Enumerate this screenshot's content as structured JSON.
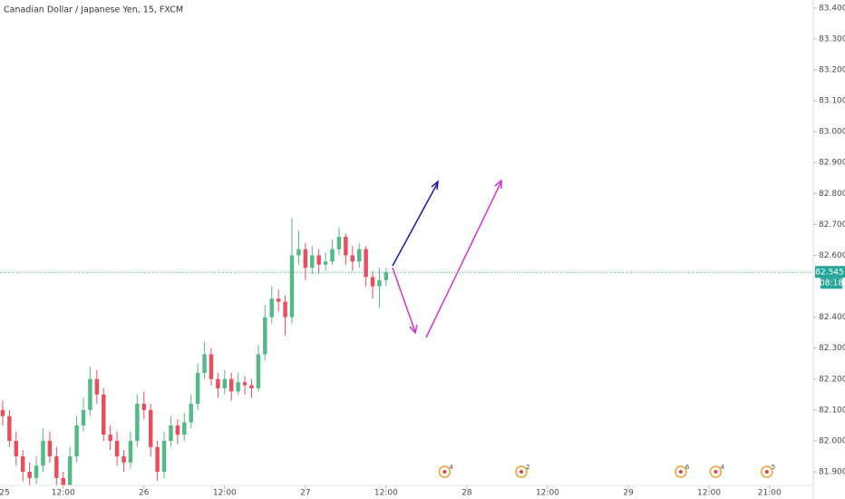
{
  "chart_data": {
    "type": "candlestick",
    "title": "Canadian Dollar / Japanese Yen, 15, FXCM",
    "x": [
      3,
      4,
      5,
      6,
      7,
      8,
      9,
      10,
      11,
      12,
      13,
      14,
      15,
      16,
      17,
      18,
      19,
      20,
      21,
      22,
      23,
      24,
      25,
      26,
      27,
      28,
      29,
      30,
      31,
      32,
      33,
      34,
      35,
      36,
      37,
      38,
      39,
      40,
      41,
      42,
      43,
      44,
      45,
      46,
      47,
      48,
      49,
      50,
      51,
      52,
      53,
      54,
      55,
      56,
      57,
      58,
      59,
      60
    ],
    "open": [
      82.1,
      82.08,
      82.0,
      81.95,
      81.9,
      81.88,
      81.92,
      82.0,
      81.95,
      81.88,
      81.85,
      81.95,
      82.05,
      82.1,
      82.2,
      82.15,
      82.02,
      82.0,
      81.95,
      81.93,
      82.0,
      82.12,
      82.1,
      81.98,
      81.9,
      82.0,
      82.05,
      82.02,
      82.06,
      82.12,
      82.22,
      82.28,
      82.2,
      82.17,
      82.2,
      82.16,
      82.19,
      82.18,
      82.17,
      82.28,
      82.4,
      82.46,
      82.45,
      82.4,
      82.6,
      82.62,
      82.56,
      82.6,
      82.57,
      82.58,
      82.62,
      82.66,
      82.6,
      82.58,
      82.62,
      82.53,
      82.5,
      82.52
    ],
    "high": [
      82.13,
      82.1,
      82.03,
      81.97,
      81.93,
      81.95,
      82.04,
      82.03,
      81.98,
      81.9,
      81.98,
      82.08,
      82.14,
      82.24,
      82.23,
      82.17,
      82.05,
      82.03,
      81.97,
      82.03,
      82.15,
      82.16,
      82.12,
      82.0,
      82.03,
      82.08,
      82.07,
      82.09,
      82.15,
      82.25,
      82.32,
      82.3,
      82.22,
      82.23,
      82.22,
      82.22,
      82.21,
      82.2,
      82.31,
      82.44,
      82.5,
      82.49,
      82.47,
      82.72,
      82.68,
      82.64,
      82.63,
      82.62,
      82.61,
      82.65,
      82.69,
      82.67,
      82.63,
      82.64,
      82.63,
      82.55,
      82.56,
      82.56
    ],
    "low": [
      82.05,
      81.98,
      81.92,
      81.87,
      81.85,
      81.86,
      81.9,
      81.93,
      81.85,
      81.82,
      81.83,
      81.93,
      82.03,
      82.08,
      82.12,
      82.0,
      81.97,
      81.92,
      81.9,
      81.91,
      81.98,
      82.07,
      81.95,
      81.87,
      81.88,
      81.98,
      81.99,
      82.0,
      82.04,
      82.1,
      82.2,
      82.18,
      82.14,
      82.15,
      82.13,
      82.15,
      82.15,
      82.14,
      82.16,
      82.26,
      82.38,
      82.42,
      82.34,
      82.38,
      82.57,
      82.52,
      82.54,
      82.54,
      82.55,
      82.57,
      82.6,
      82.57,
      82.55,
      82.56,
      82.5,
      82.46,
      82.43,
      82.5
    ],
    "close": [
      82.08,
      82.0,
      81.95,
      81.9,
      81.88,
      81.92,
      82.0,
      81.95,
      81.88,
      81.85,
      81.95,
      82.05,
      82.1,
      82.2,
      82.15,
      82.02,
      82.0,
      81.95,
      81.93,
      82.0,
      82.12,
      82.1,
      81.98,
      81.9,
      82.0,
      82.05,
      82.02,
      82.06,
      82.12,
      82.22,
      82.28,
      82.2,
      82.17,
      82.2,
      82.16,
      82.19,
      82.18,
      82.17,
      82.28,
      82.4,
      82.46,
      82.45,
      82.4,
      82.6,
      82.62,
      82.56,
      82.6,
      82.57,
      82.58,
      82.62,
      82.66,
      82.6,
      82.58,
      82.62,
      82.53,
      82.5,
      82.52,
      82.545
    ],
    "up_color": "#53b987",
    "down_color": "#eb4d5c",
    "current_price": 82.545,
    "countdown": "08:18",
    "price_color": "#26a69a",
    "xlim": [
      2.6,
      123.5
    ],
    "ylim": [
      81.856,
      83.426
    ],
    "xticks": [
      {
        "value": 0,
        "label": "25"
      },
      {
        "value": 12,
        "label": "12:00"
      },
      {
        "value": 24,
        "label": "26"
      },
      {
        "value": 36,
        "label": "12:00"
      },
      {
        "value": 48,
        "label": "27"
      },
      {
        "value": 60,
        "label": "12:00"
      },
      {
        "value": 72,
        "label": "28"
      },
      {
        "value": 84,
        "label": "12:00"
      },
      {
        "value": 96,
        "label": "29"
      },
      {
        "value": 108,
        "label": "12:00"
      },
      {
        "value": 117,
        "label": "21:00"
      }
    ],
    "yticks": [
      {
        "value": 83.4,
        "label": "83.400"
      },
      {
        "value": 83.3,
        "label": "83.300"
      },
      {
        "value": 83.2,
        "label": "83.200"
      },
      {
        "value": 83.1,
        "label": "83.100"
      },
      {
        "value": 83.0,
        "label": "83.000"
      },
      {
        "value": 82.9,
        "label": "82.900"
      },
      {
        "value": 82.8,
        "label": "82.800"
      },
      {
        "value": 82.7,
        "label": "82.700"
      },
      {
        "value": 82.6,
        "label": "82.600"
      },
      {
        "value": 82.4,
        "label": "82.400"
      },
      {
        "value": 82.3,
        "label": "82.300"
      },
      {
        "value": 82.2,
        "label": "82.200"
      },
      {
        "value": 82.1,
        "label": "82.100"
      },
      {
        "value": 82.0,
        "label": "82.000"
      },
      {
        "value": 81.9,
        "label": "81.900"
      }
    ],
    "events": [
      {
        "x": 68.7,
        "count": 4
      },
      {
        "x": 80.1,
        "count": 2
      },
      {
        "x": 103.8,
        "count": 6
      },
      {
        "x": 109,
        "count": 4
      },
      {
        "x": 116.6,
        "count": 5
      }
    ]
  }
}
